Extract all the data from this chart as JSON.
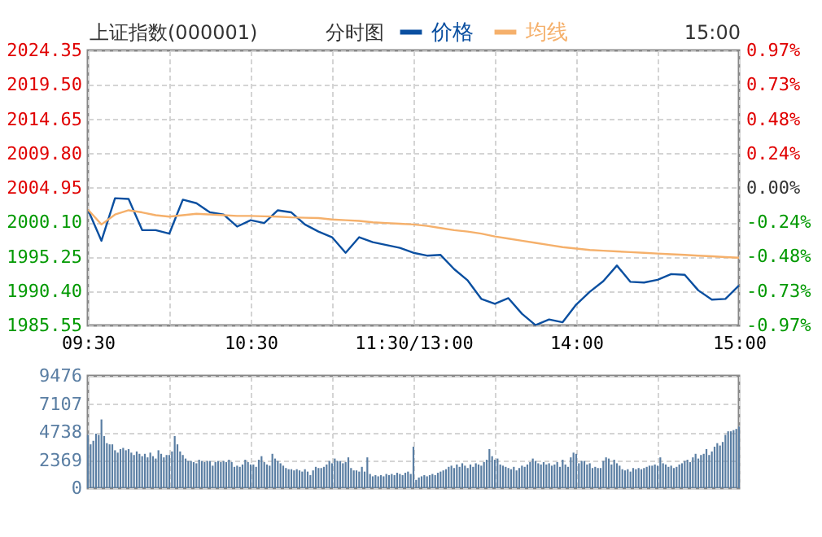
{
  "chart_data": [
    {
      "type": "line",
      "title": "上证指数(000001)",
      "subtitle": "分时图",
      "annotations": [
        "15:00"
      ],
      "categories": [
        "09:30",
        null,
        null,
        null,
        null,
        null,
        null,
        null,
        null,
        null,
        null,
        null,
        "10:30",
        null,
        null,
        null,
        null,
        null,
        null,
        null,
        null,
        null,
        null,
        null,
        "11:30/13:00",
        null,
        null,
        null,
        null,
        null,
        null,
        null,
        null,
        null,
        null,
        null,
        "14:00",
        null,
        null,
        null,
        null,
        null,
        null,
        null,
        null,
        null,
        null,
        null,
        "15:00"
      ],
      "series": [
        {
          "name": "价格",
          "color": "#0a4fa0",
          "values": [
            2001.9,
            1997.5,
            2003.5,
            2003.4,
            1999.0,
            1999.0,
            1998.5,
            2003.3,
            2002.8,
            2001.5,
            2001.2,
            1999.5,
            2000.4,
            2000.0,
            2001.8,
            2001.5,
            1999.8,
            1998.8,
            1998.0,
            1995.8,
            1998.0,
            1997.3,
            1996.9,
            1996.5,
            1995.8,
            1995.4,
            1995.5,
            1993.5,
            1991.9,
            1989.3,
            1988.6,
            1989.4,
            1987.2,
            1985.6,
            1986.4,
            1986.0,
            1988.5,
            1990.3,
            1991.8,
            1994.0,
            1991.7,
            1991.6,
            1992.0,
            1992.8,
            1992.7,
            1990.5,
            1989.2,
            1989.3,
            1991.2
          ]
        },
        {
          "name": "均线",
          "color": "#f5b06b",
          "values": [
            2001.9,
            1999.8,
            2001.2,
            2001.8,
            2001.5,
            2001.1,
            2000.9,
            2001.1,
            2001.3,
            2001.2,
            2001.1,
            2001.0,
            2001.0,
            2000.95,
            2000.9,
            2000.8,
            2000.75,
            2000.7,
            2000.5,
            2000.4,
            2000.3,
            2000.1,
            2000.0,
            1999.9,
            1999.8,
            1999.6,
            1999.3,
            1999.0,
            1998.8,
            1998.5,
            1998.1,
            1997.8,
            1997.5,
            1997.2,
            1996.9,
            1996.6,
            1996.4,
            1996.2,
            1996.1,
            1996.0,
            1995.9,
            1995.8,
            1995.7,
            1995.6,
            1995.5,
            1995.4,
            1995.3,
            1995.2,
            1995.1
          ]
        }
      ],
      "ylim": [
        1985.55,
        2024.35
      ],
      "yticks": [
        1985.55,
        {
          "value": 1990.4,
          "label": "1990.40"
        },
        1995.25,
        {
          "value": 2000.1,
          "label": "2000.10"
        },
        2004.95,
        {
          "value": 2009.8,
          "label": "2009.80"
        },
        2014.65,
        {
          "value": 2019.5,
          "label": "2019.50"
        },
        2024.35
      ],
      "y2lim": [
        -0.97,
        0.97
      ],
      "y2ticks": [
        {
          "value": -0.97,
          "label": "-0.97%"
        },
        {
          "value": -0.73,
          "label": "-0.73%"
        },
        {
          "value": -0.48,
          "label": "-0.48%"
        },
        {
          "value": -0.24,
          "label": "-0.24%"
        },
        {
          "value": 0,
          "label": "0.00%"
        },
        {
          "value": 0.24,
          "label": "0.24%"
        },
        {
          "value": 0.48,
          "label": "0.48%"
        },
        {
          "value": 0.73,
          "label": "0.73%"
        },
        {
          "value": 0.97,
          "label": "0.97%"
        }
      ],
      "grid": true,
      "legend": "top"
    },
    {
      "type": "bar",
      "color": "#5a7ea3",
      "categories": [
        null,
        null,
        null,
        null,
        null,
        null,
        null,
        null,
        null,
        null,
        null,
        null,
        null,
        null,
        null,
        null,
        null,
        null,
        null,
        null,
        null,
        null,
        null,
        null,
        null,
        null,
        null,
        null,
        null,
        null,
        null,
        null,
        null,
        null,
        null,
        null,
        null,
        null,
        null,
        null,
        null,
        null,
        null,
        null,
        null,
        null,
        null,
        null,
        null,
        null,
        null,
        null,
        null,
        null,
        null,
        null,
        null,
        null,
        null,
        null,
        null,
        null,
        null,
        null,
        null,
        null,
        null,
        null,
        null,
        null,
        null,
        null,
        null,
        null,
        null,
        null,
        null,
        null,
        null,
        null,
        null,
        null,
        null,
        null,
        null,
        null,
        null,
        null,
        null,
        null,
        null,
        null,
        null,
        null,
        null,
        null,
        null,
        null,
        null,
        null,
        null,
        null,
        null,
        null,
        null,
        null,
        null,
        null,
        null,
        null,
        null,
        null,
        null,
        null,
        null,
        null,
        null,
        null,
        null,
        null,
        null,
        null,
        null,
        null,
        null,
        null,
        null,
        null,
        null,
        null,
        null,
        null,
        null,
        null,
        null,
        null,
        null,
        null,
        null,
        null,
        null,
        null,
        null,
        null,
        null,
        null,
        null,
        null,
        null,
        null,
        null,
        null,
        null,
        null,
        null,
        null,
        null,
        null,
        null,
        null,
        null,
        null,
        null,
        null,
        null,
        null,
        null,
        null,
        null,
        null,
        null,
        null,
        null,
        null,
        null,
        null,
        null,
        null,
        null,
        null,
        null,
        null,
        null,
        null,
        null,
        null,
        null,
        null,
        null,
        null,
        null,
        null,
        null,
        null,
        null,
        null,
        null,
        null,
        null,
        null,
        null,
        null,
        null,
        null,
        null,
        null,
        null,
        null,
        null,
        null,
        null,
        null,
        null,
        null,
        null,
        null,
        null,
        null,
        null,
        null,
        null,
        null,
        null,
        null,
        null,
        null,
        null,
        null,
        null,
        null,
        null,
        null,
        null,
        null,
        null,
        null,
        null,
        null,
        null,
        null,
        null
      ],
      "values": [
        4500,
        3700,
        4000,
        4600,
        4500,
        5800,
        4400,
        3800,
        3700,
        3700,
        3200,
        3000,
        3300,
        3400,
        3200,
        3300,
        3000,
        2800,
        3100,
        2900,
        2700,
        2900,
        2600,
        3000,
        2700,
        2500,
        3200,
        2900,
        2600,
        2800,
        2800,
        3100,
        4400,
        3700,
        3100,
        2800,
        2500,
        2300,
        2300,
        2200,
        2100,
        2400,
        2300,
        2200,
        2300,
        2300,
        1900,
        2200,
        2300,
        2200,
        2300,
        2200,
        2400,
        2200,
        1800,
        1900,
        1800,
        2000,
        2400,
        2200,
        2000,
        2000,
        1800,
        2400,
        2700,
        2200,
        2000,
        1900,
        2900,
        2500,
        2300,
        2100,
        1900,
        1700,
        1600,
        1600,
        1500,
        1600,
        1500,
        1400,
        1600,
        1400,
        1100,
        1500,
        1800,
        1700,
        1700,
        1800,
        2000,
        2300,
        2100,
        2500,
        2300,
        2300,
        2100,
        2200,
        2600,
        1700,
        1500,
        1500,
        1400,
        1800,
        1400,
        2600,
        1200,
        1000,
        1100,
        1000,
        1100,
        1000,
        1200,
        1100,
        1200,
        1100,
        1300,
        1200,
        1100,
        1300,
        1400,
        1200,
        3500,
        700,
        900,
        1000,
        1100,
        1000,
        1100,
        1200,
        1100,
        1300,
        1400,
        1500,
        1600,
        1800,
        1900,
        1700,
        2000,
        1800,
        2100,
        1900,
        1700,
        2000,
        1800,
        2100,
        2000,
        1900,
        2200,
        2400,
        3300,
        2700,
        2400,
        2500,
        2000,
        1900,
        1800,
        1700,
        1600,
        1800,
        1500,
        1700,
        1900,
        1800,
        2000,
        2200,
        2500,
        2300,
        2100,
        2000,
        2200,
        2000,
        2100,
        1900,
        2000,
        2200,
        1800,
        2400,
        2000,
        1800,
        2600,
        3000,
        2900,
        2100,
        2300,
        2300,
        2000,
        2100,
        1700,
        1800,
        1700,
        1700,
        2300,
        2600,
        2500,
        2000,
        2400,
        2100,
        1900,
        1600,
        1500,
        1600,
        1400,
        1700,
        1600,
        1700,
        1600,
        1700,
        1800,
        1900,
        1900,
        2000,
        1900,
        2600,
        2100,
        2000,
        1800,
        1900,
        1700,
        1800,
        2000,
        2100,
        2300,
        2400,
        2200,
        2600,
        2900,
        2500,
        2800,
        2900,
        3300,
        2800,
        3100,
        3500,
        3800,
        3600,
        3900,
        4500,
        4800,
        4800,
        4900,
        5000,
        5200
      ],
      "ylim": [
        0,
        9476
      ],
      "yticks": [
        0,
        2369,
        4738,
        7107,
        9476
      ],
      "grid": true,
      "tick_labels": "y"
    }
  ]
}
